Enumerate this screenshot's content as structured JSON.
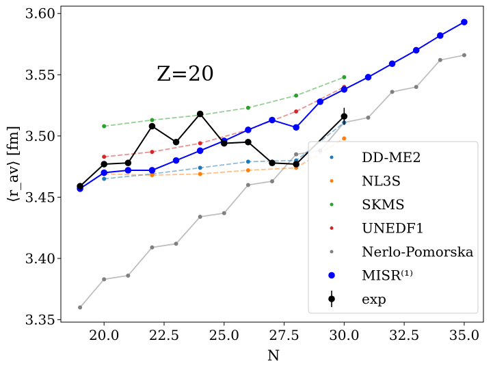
{
  "chart_data": {
    "type": "line",
    "xlabel": "N",
    "ylabel": "⟨r_av⟩ [fm]",
    "xlim": [
      18.2,
      35.8
    ],
    "ylim": [
      3.348,
      3.606
    ],
    "xticks": [
      20.0,
      22.5,
      25.0,
      27.5,
      30.0,
      32.5,
      35.0
    ],
    "xtick_labels": [
      "20.0",
      "22.5",
      "25.0",
      "27.5",
      "30.0",
      "32.5",
      "35.0"
    ],
    "yticks": [
      3.35,
      3.4,
      3.45,
      3.5,
      3.55,
      3.6
    ],
    "ytick_labels": [
      "3.35",
      "3.40",
      "3.45",
      "3.50",
      "3.55",
      "3.60"
    ],
    "annotation": "Z=20",
    "legend_position": "lower-right",
    "series": [
      {
        "name": "DD-ME2",
        "color": "#1f77b4",
        "style": "dashed",
        "x": [
          20,
          22,
          24,
          26,
          28,
          30
        ],
        "y": [
          3.465,
          3.469,
          3.474,
          3.479,
          3.48,
          3.511
        ]
      },
      {
        "name": "NL3S",
        "color": "#ff7f0e",
        "style": "dashed",
        "x": [
          20,
          22,
          24,
          26,
          28,
          30
        ],
        "y": [
          3.469,
          3.468,
          3.469,
          3.472,
          3.474,
          3.498
        ]
      },
      {
        "name": "SKMS",
        "color": "#2ca02c",
        "style": "dashed",
        "x": [
          20,
          22,
          24,
          26,
          28,
          30
        ],
        "y": [
          3.508,
          3.513,
          3.517,
          3.523,
          3.533,
          3.548
        ]
      },
      {
        "name": "UNEDF1",
        "color": "#d62728",
        "style": "dashed",
        "x": [
          20,
          22,
          24,
          26,
          28,
          30
        ],
        "y": [
          3.483,
          3.487,
          3.494,
          3.505,
          3.52,
          3.54
        ]
      },
      {
        "name": "Nerlo-Pomorska",
        "color": "#808080",
        "style": "solid",
        "x": [
          19,
          20,
          21,
          22,
          23,
          24,
          25,
          26,
          27,
          28,
          29,
          30,
          31,
          32,
          33,
          34,
          35
        ],
        "y": [
          3.36,
          3.383,
          3.386,
          3.409,
          3.412,
          3.434,
          3.437,
          3.46,
          3.463,
          3.485,
          3.488,
          3.511,
          3.515,
          3.536,
          3.54,
          3.562,
          3.566
        ]
      },
      {
        "name": "MISR⁽¹⁾",
        "color": "#0000ff",
        "style": "solid",
        "x": [
          19,
          20,
          21,
          22,
          23,
          24,
          25,
          26,
          27,
          28,
          29,
          30,
          31,
          32,
          33,
          34,
          35
        ],
        "y": [
          3.457,
          3.47,
          3.472,
          3.472,
          3.48,
          3.488,
          3.496,
          3.505,
          3.513,
          3.507,
          3.528,
          3.538,
          3.548,
          3.559,
          3.57,
          3.582,
          3.593
        ]
      },
      {
        "name": "exp",
        "color": "#000000",
        "style": "solid",
        "x": [
          19,
          20,
          21,
          22,
          23,
          24,
          25,
          26,
          27,
          28,
          30
        ],
        "y": [
          3.459,
          3.477,
          3.478,
          3.508,
          3.495,
          3.518,
          3.494,
          3.495,
          3.478,
          3.477,
          3.516
        ],
        "error": [
          0,
          0,
          0,
          0,
          0,
          0,
          0,
          0,
          0,
          0,
          0.007
        ]
      }
    ]
  }
}
